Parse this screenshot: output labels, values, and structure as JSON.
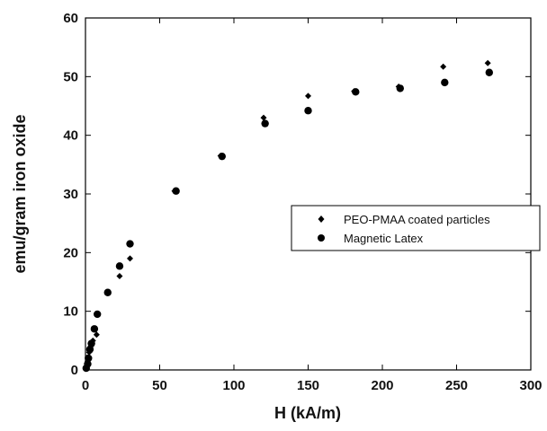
{
  "chart_data": {
    "type": "scatter",
    "title": "",
    "xlabel": "H (kA/m)",
    "ylabel": "emu/gram iron oxide",
    "xlim": [
      0,
      300
    ],
    "ylim": [
      0,
      60
    ],
    "x_ticks": [
      0,
      50,
      100,
      150,
      200,
      250,
      300
    ],
    "x_tick_labels": [
      "0",
      "50",
      "100",
      "150",
      "200",
      "250",
      "300"
    ],
    "y_ticks": [
      0,
      10,
      20,
      30,
      40,
      50,
      60
    ],
    "y_tick_labels": [
      "0",
      "10",
      "20",
      "30",
      "40",
      "50",
      "60"
    ],
    "grid": false,
    "legend_position": "right-center",
    "series": [
      {
        "name": "PEO-PMAA coated particles",
        "marker": "diamond",
        "color": "#000000",
        "points": [
          [
            0.5,
            0.3
          ],
          [
            1.5,
            1.5
          ],
          [
            2.5,
            3.0
          ],
          [
            3.5,
            4.0
          ],
          [
            5.0,
            5.0
          ],
          [
            7.5,
            6.0
          ],
          [
            23,
            16.0
          ],
          [
            30,
            19.0
          ],
          [
            60,
            30.5
          ],
          [
            91,
            36.5
          ],
          [
            120,
            43.0
          ],
          [
            150,
            46.7
          ],
          [
            181,
            47.5
          ],
          [
            211,
            48.3
          ],
          [
            241,
            51.7
          ],
          [
            271,
            52.3
          ]
        ]
      },
      {
        "name": "Magnetic Latex",
        "marker": "circle",
        "color": "#000000",
        "points": [
          [
            0.5,
            0.3
          ],
          [
            1.5,
            1.0
          ],
          [
            2.0,
            2.0
          ],
          [
            3.0,
            3.5
          ],
          [
            4.0,
            4.5
          ],
          [
            6.0,
            7.0
          ],
          [
            8,
            9.5
          ],
          [
            15,
            13.2
          ],
          [
            23,
            17.7
          ],
          [
            30,
            21.5
          ],
          [
            61,
            30.5
          ],
          [
            92,
            36.4
          ],
          [
            121,
            42.0
          ],
          [
            150,
            44.2
          ],
          [
            182,
            47.4
          ],
          [
            212,
            48.0
          ],
          [
            242,
            49.0
          ],
          [
            272,
            50.7
          ]
        ]
      }
    ]
  }
}
